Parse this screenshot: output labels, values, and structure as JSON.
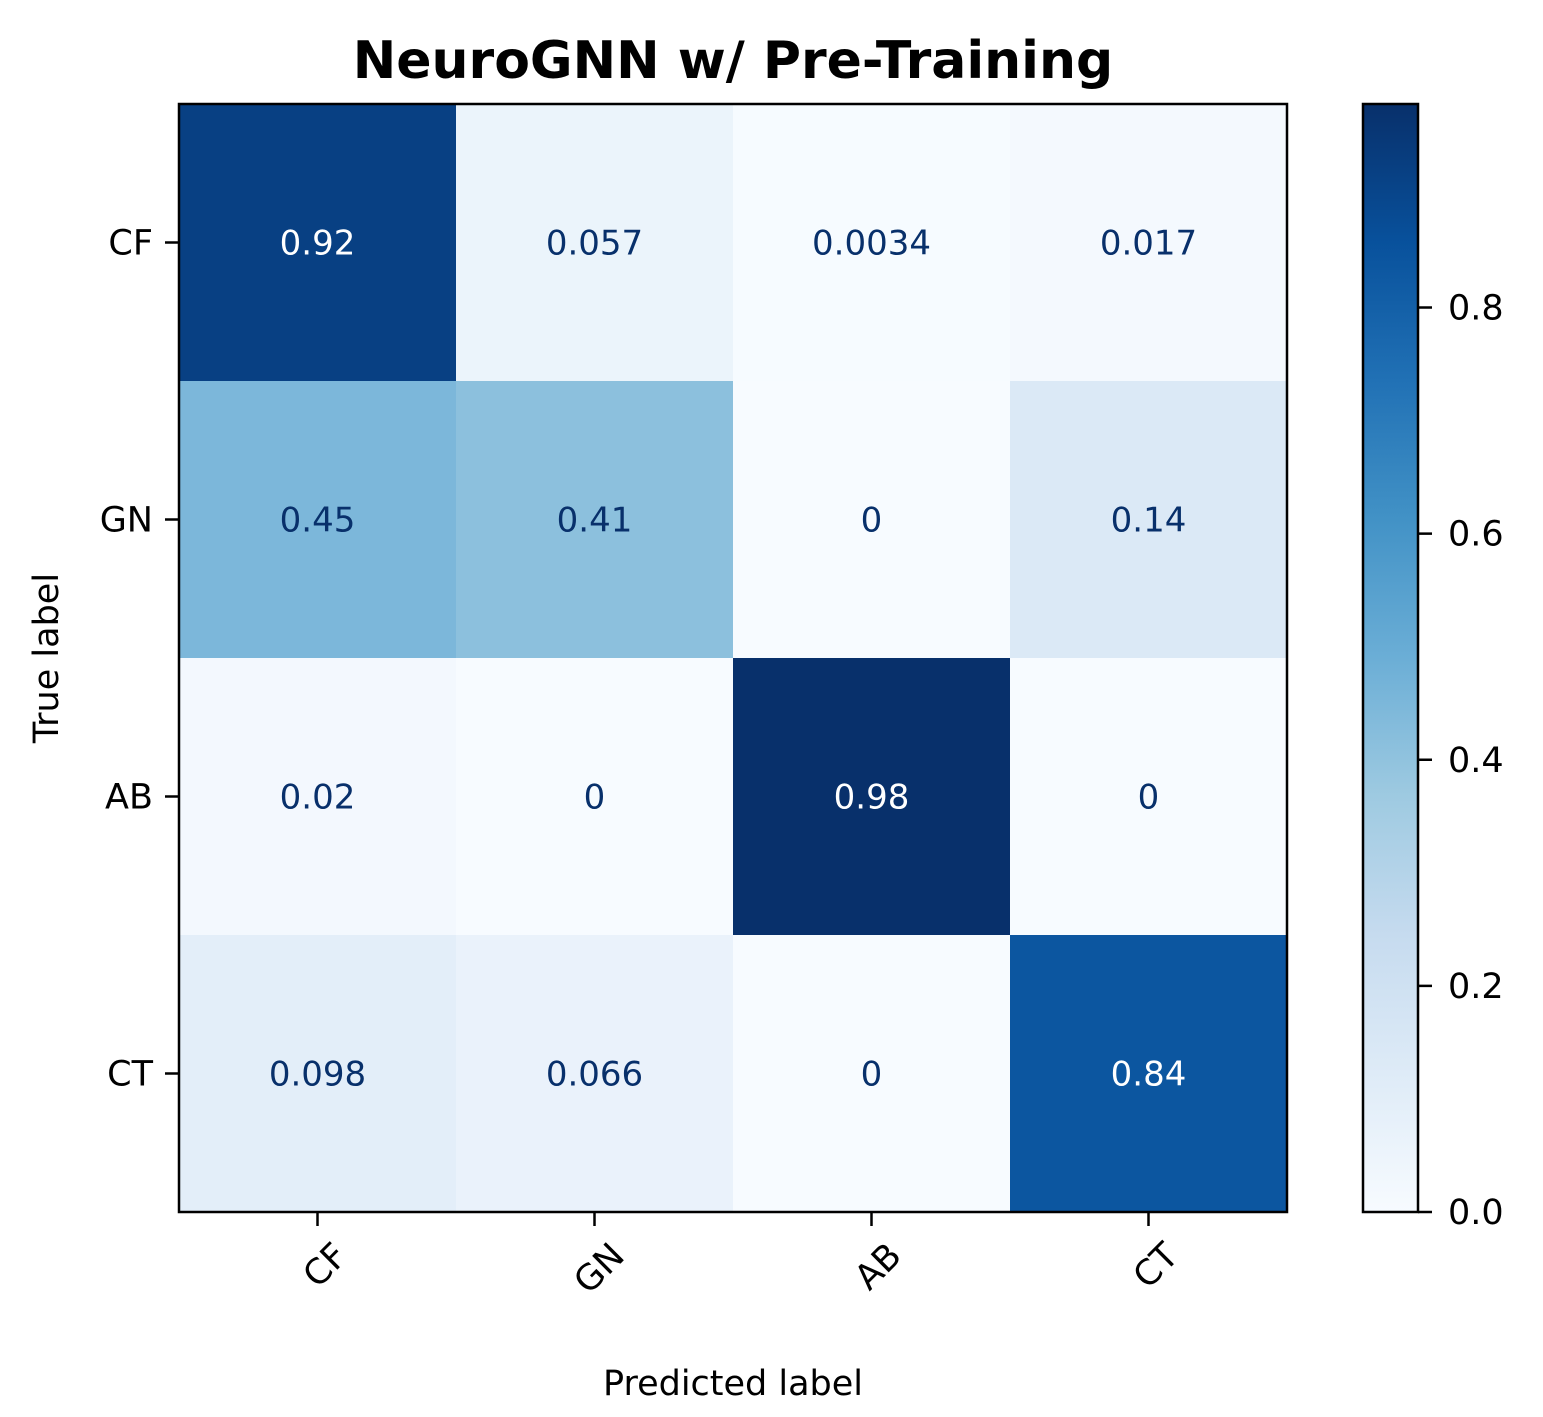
{
  "chart_data": {
    "type": "heatmap",
    "title": "NeuroGNN w/ Pre-Training",
    "xlabel": "Predicted label",
    "ylabel": "True label",
    "x_categories": [
      "CF",
      "GN",
      "AB",
      "CT"
    ],
    "y_categories": [
      "CF",
      "GN",
      "AB",
      "CT"
    ],
    "values": [
      [
        0.92,
        0.057,
        0.0034,
        0.017
      ],
      [
        0.45,
        0.41,
        0,
        0.14
      ],
      [
        0.02,
        0,
        0.98,
        0
      ],
      [
        0.098,
        0.066,
        0,
        0.84
      ]
    ],
    "value_labels": [
      [
        "0.92",
        "0.057",
        "0.0034",
        "0.017"
      ],
      [
        "0.45",
        "0.41",
        "0",
        "0.14"
      ],
      [
        "0.02",
        "0",
        "0.98",
        "0"
      ],
      [
        "0.098",
        "0.066",
        "0",
        "0.84"
      ]
    ],
    "colormap": "Blues",
    "colorbar": {
      "range": [
        0,
        0.98
      ],
      "ticks": [
        0.0,
        0.2,
        0.4,
        0.6,
        0.8
      ],
      "tick_labels": [
        "0.0",
        "0.2",
        "0.4",
        "0.6",
        "0.8"
      ]
    },
    "x_tick_rotation_deg": 45,
    "colors": {
      "dark_text": "#08306b",
      "light_text": "#ffffff",
      "axis": "#000000"
    }
  }
}
